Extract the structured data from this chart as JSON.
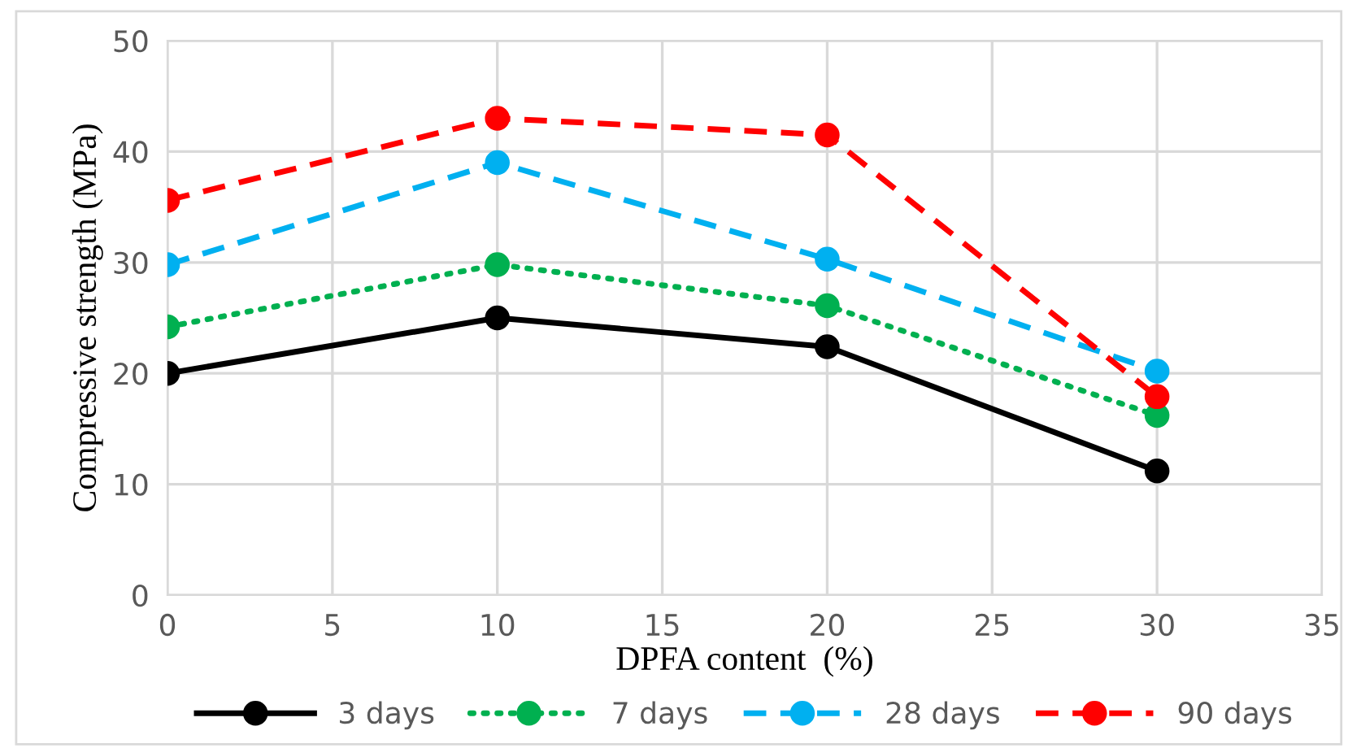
{
  "chart_data": {
    "type": "line",
    "xlabel": "DPFA content  (%)",
    "ylabel": "Compressive strength (MPa)",
    "x": [
      0,
      10,
      20,
      30
    ],
    "xlim": [
      0,
      35
    ],
    "xticks": [
      0,
      5,
      10,
      15,
      20,
      25,
      30,
      35
    ],
    "ylim": [
      0,
      50
    ],
    "yticks": [
      0,
      10,
      20,
      30,
      40,
      50
    ],
    "grid": true,
    "legend": "bottom",
    "marker": "circle",
    "series": [
      {
        "name": "3 days",
        "color": "#000000",
        "line_style": "solid",
        "values": [
          20.0,
          25.0,
          22.4,
          11.2
        ]
      },
      {
        "name": "7 days",
        "color": "#00b050",
        "line_style": "dotted",
        "values": [
          24.2,
          29.8,
          26.1,
          16.2
        ]
      },
      {
        "name": "28 days",
        "color": "#00b0f0",
        "line_style": "dashed",
        "values": [
          29.8,
          39.0,
          30.3,
          20.2
        ]
      },
      {
        "name": "90 days",
        "color": "#ff0000",
        "line_style": "dashed",
        "values": [
          35.6,
          43.0,
          41.5,
          17.9
        ]
      }
    ]
  }
}
